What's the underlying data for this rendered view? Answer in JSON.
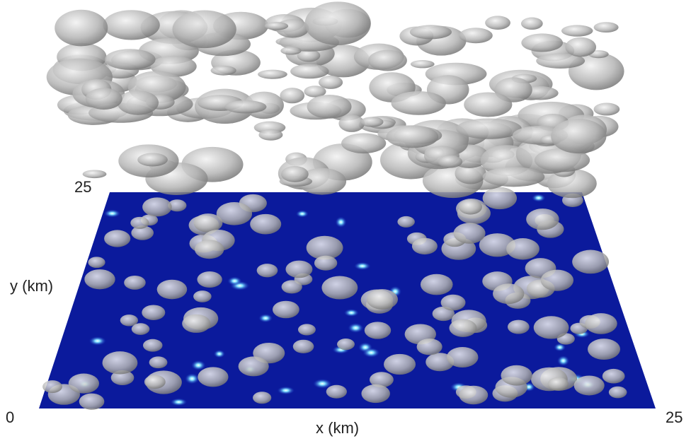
{
  "axes": {
    "x": {
      "label": "x (km)",
      "ticks": [
        "0",
        "25"
      ]
    },
    "y": {
      "label": "y (km)",
      "ticks": [
        "25"
      ]
    }
  }
}
